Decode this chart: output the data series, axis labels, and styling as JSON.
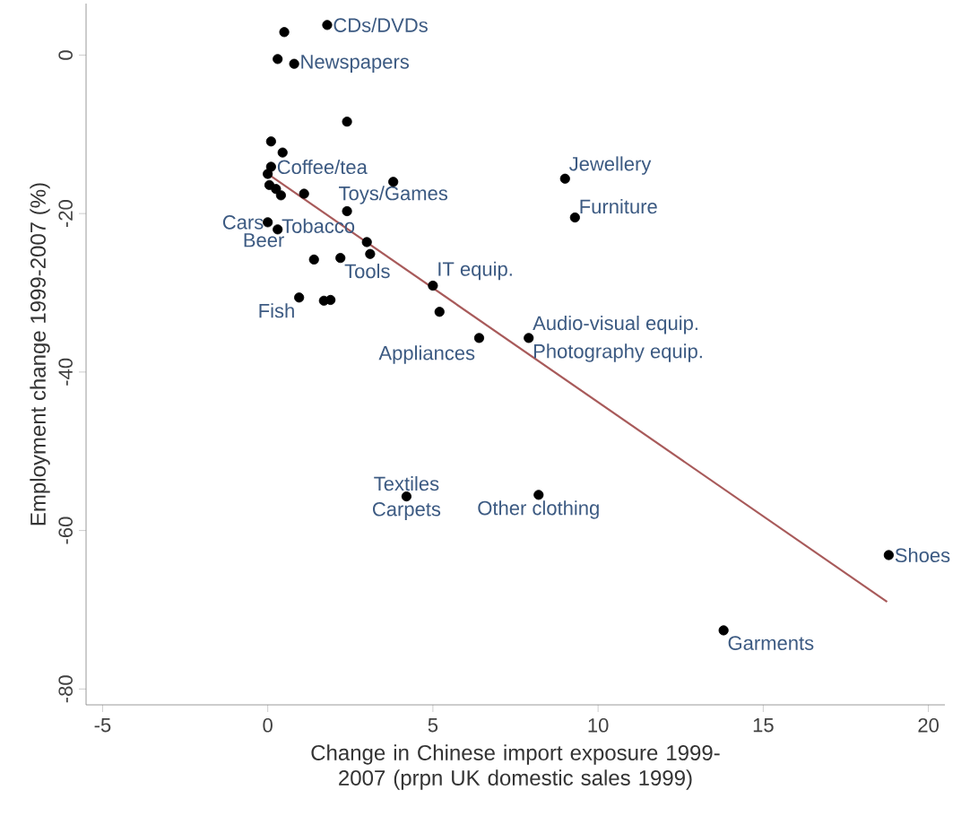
{
  "chart_data": {
    "type": "scatter",
    "xlabel": "Change in Chinese import exposure 1999-2007 (prpn UK domestic sales 1999)",
    "ylabel": "Employment change 1999-2007 (%)",
    "xlim": [
      -5.5,
      20.5
    ],
    "ylim": [
      -82,
      6.5
    ],
    "xticks": [
      -5,
      0,
      5,
      10,
      15,
      20
    ],
    "yticks": [
      -80,
      -60,
      -40,
      -20,
      0
    ],
    "grid": false,
    "series": [
      {
        "type": "scatter",
        "color": "#000000",
        "marker": "circle",
        "x": [
          0.5,
          1.8,
          0.3,
          0.8,
          2.4,
          0.1,
          0.45,
          0.1,
          0.0,
          0.05,
          0.25,
          0.4,
          1.1,
          3.8,
          2.4,
          0.0,
          0.3,
          3.0,
          3.1,
          1.4,
          2.2,
          5.0,
          0.95,
          1.7,
          1.9,
          5.2,
          6.4,
          7.9,
          9.0,
          9.3,
          4.2,
          8.2,
          18.8,
          13.8
        ],
        "values": [
          2.9,
          3.8,
          -0.5,
          -1.1,
          -8.4,
          -10.9,
          -12.3,
          -14.1,
          -15.0,
          -16.4,
          -16.9,
          -17.7,
          -17.5,
          -16.0,
          -19.7,
          -21.1,
          -22.0,
          -23.6,
          -25.1,
          -25.8,
          -25.6,
          -29.1,
          -30.6,
          -31.0,
          -30.9,
          -32.4,
          -35.7,
          -35.7,
          -15.6,
          -20.5,
          -55.7,
          -55.5,
          -63.1,
          -72.6
        ]
      },
      {
        "type": "line",
        "color": "#a85a5a",
        "marker": "none",
        "line_style": "solid",
        "x": [
          0.0,
          18.75
        ],
        "values": [
          -15.0,
          -69.0
        ]
      }
    ],
    "annotations": [
      {
        "text": "CDs/DVDs",
        "x": 1.8,
        "y": 3.8
      },
      {
        "text": "Newspapers",
        "x": 0.8,
        "y": -1.1
      },
      {
        "text": "Coffee/tea",
        "x": 0.1,
        "y": -14.1
      },
      {
        "text": "Toys/Games",
        "x": 3.8,
        "y": -16.0
      },
      {
        "text": "Tobacco",
        "x": 0.3,
        "y": -22.0
      },
      {
        "text": "Cars",
        "x": 0.0,
        "y": -21.1
      },
      {
        "text": "Beer",
        "x": 0.3,
        "y": -22.0
      },
      {
        "text": "Tools",
        "x": 2.2,
        "y": -25.6
      },
      {
        "text": "IT equip.",
        "x": 5.0,
        "y": -29.1
      },
      {
        "text": "Fish",
        "x": 0.95,
        "y": -30.6
      },
      {
        "text": "Appliances",
        "x": 6.4,
        "y": -35.7
      },
      {
        "text": "Audio-visual equip.",
        "x": 7.9,
        "y": -35.7
      },
      {
        "text": "Photography equip.",
        "x": 7.9,
        "y": -35.7
      },
      {
        "text": "Jewellery",
        "x": 9.0,
        "y": -15.6
      },
      {
        "text": "Furniture",
        "x": 9.3,
        "y": -20.5
      },
      {
        "text": "Textiles",
        "x": 4.2,
        "y": -55.7
      },
      {
        "text": "Carpets",
        "x": 4.2,
        "y": -55.7
      },
      {
        "text": "Other clothing",
        "x": 8.2,
        "y": -55.5
      },
      {
        "text": "Shoes",
        "x": 18.8,
        "y": -63.1
      },
      {
        "text": "Garments",
        "x": 13.8,
        "y": -72.6
      }
    ]
  }
}
